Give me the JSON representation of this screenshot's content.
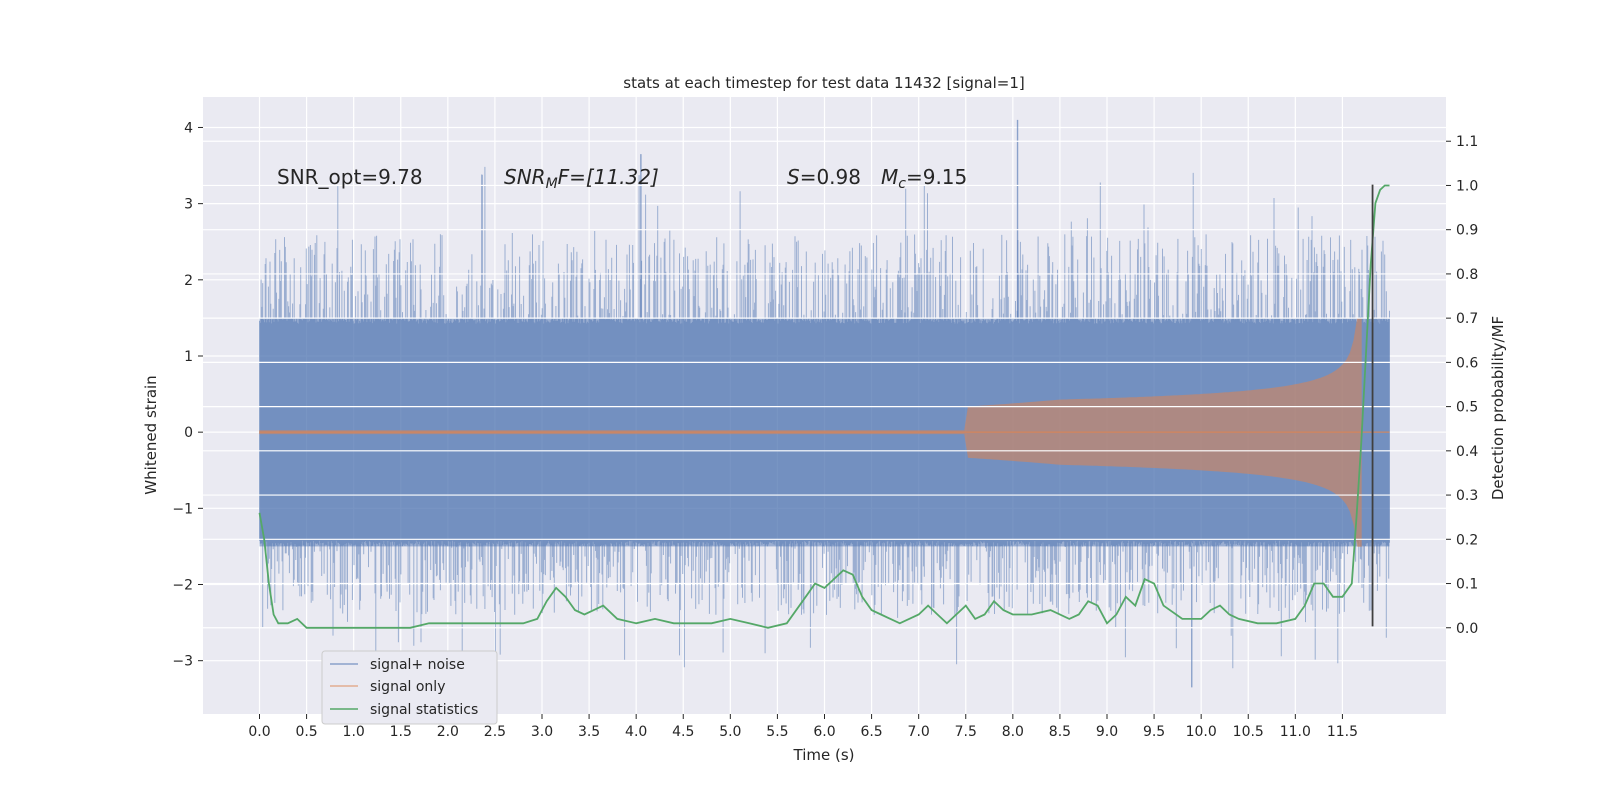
{
  "chart_data": {
    "type": "line",
    "title": "stats at each timestep for test data 11432 [signal=1]",
    "xlabel": "Time (s)",
    "ylabel_left": "Whitened strain",
    "ylabel_right": "Detection probability/MF",
    "xlim": [
      -0.6,
      12.6
    ],
    "ylim_left": [
      -3.7,
      4.4
    ],
    "ylim_right": [
      -0.195,
      1.2
    ],
    "x_ticks": [
      0.0,
      0.5,
      1.0,
      1.5,
      2.0,
      2.5,
      3.0,
      3.5,
      4.0,
      4.5,
      5.0,
      5.5,
      6.0,
      6.5,
      7.0,
      7.5,
      8.0,
      8.5,
      9.0,
      9.5,
      10.0,
      10.5,
      11.0,
      11.5
    ],
    "x_tick_labels": [
      "0.0",
      "0.5",
      "1.0",
      "1.5",
      "2.0",
      "2.5",
      "3.0",
      "3.5",
      "4.0",
      "4.5",
      "5.0",
      "5.5",
      "6.0",
      "6.5",
      "7.0",
      "7.5",
      "8.0",
      "8.5",
      "9.0",
      "9.5",
      "10.0",
      "10.5",
      "11.0",
      "11.5"
    ],
    "y_left_ticks": [
      -3,
      -2,
      -1,
      0,
      1,
      2,
      3,
      4
    ],
    "y_left_tick_labels": [
      "−3",
      "−2",
      "−1",
      "0",
      "1",
      "2",
      "3",
      "4"
    ],
    "y_right_ticks": [
      0.0,
      0.1,
      0.2,
      0.3,
      0.4,
      0.5,
      0.6,
      0.7,
      0.8,
      0.9,
      1.0,
      1.1
    ],
    "y_right_tick_labels": [
      "0.0",
      "0.1",
      "0.2",
      "0.3",
      "0.4",
      "0.5",
      "0.6",
      "0.7",
      "0.8",
      "0.9",
      "1.0",
      "1.1"
    ],
    "grid": true,
    "legend_position": "bottom-left",
    "annotations": {
      "snr_opt": "SNR_opt=9.78",
      "snr_mf_sym": "SNR",
      "snr_mf_sub": "M",
      "snr_mf_rest": "F=[11.32]",
      "s_sym": "S",
      "s_rest": "=0.98",
      "mc_sym": "M",
      "mc_sub": "c",
      "mc_rest": "=9.15"
    },
    "vertical_marker": {
      "x": 11.82,
      "y_range": [
        -2.55,
        3.25
      ],
      "color": "#404040"
    },
    "series": [
      {
        "name": "signal+ noise",
        "axis": "left",
        "color": "#4c72b0",
        "style": "noise",
        "x_range": [
          0.0,
          12.0
        ],
        "envelope": 1.5,
        "peak_max": 4.1,
        "trough_min": -3.35
      },
      {
        "name": "signal only",
        "axis": "left",
        "color": "#dd8452",
        "style": "chirp",
        "x_range": [
          0.0,
          12.0
        ],
        "merger_time": 11.65,
        "peak_amplitude": 1.5
      },
      {
        "name": "signal statistics",
        "axis": "right",
        "color": "#55a868",
        "style": "line",
        "x": [
          0.0,
          0.05,
          0.1,
          0.15,
          0.2,
          0.3,
          0.4,
          0.5,
          0.6,
          0.8,
          1.0,
          1.2,
          1.4,
          1.6,
          1.8,
          2.0,
          2.2,
          2.4,
          2.6,
          2.8,
          2.95,
          3.05,
          3.15,
          3.25,
          3.35,
          3.45,
          3.55,
          3.65,
          3.8,
          4.0,
          4.2,
          4.4,
          4.6,
          4.8,
          5.0,
          5.2,
          5.4,
          5.6,
          5.8,
          5.9,
          6.0,
          6.1,
          6.2,
          6.3,
          6.4,
          6.5,
          6.6,
          6.8,
          7.0,
          7.1,
          7.2,
          7.3,
          7.4,
          7.5,
          7.6,
          7.7,
          7.8,
          7.9,
          8.0,
          8.2,
          8.4,
          8.6,
          8.7,
          8.8,
          8.9,
          9.0,
          9.1,
          9.2,
          9.3,
          9.4,
          9.5,
          9.6,
          9.8,
          10.0,
          10.1,
          10.2,
          10.3,
          10.4,
          10.6,
          10.8,
          11.0,
          11.1,
          11.2,
          11.3,
          11.4,
          11.5,
          11.6,
          11.65,
          11.7,
          11.75,
          11.8,
          11.85,
          11.9,
          11.95,
          12.0
        ],
        "values": [
          0.26,
          0.2,
          0.1,
          0.03,
          0.01,
          0.01,
          0.02,
          0.0,
          0.0,
          0.0,
          0.0,
          0.0,
          0.0,
          0.0,
          0.01,
          0.01,
          0.01,
          0.01,
          0.01,
          0.01,
          0.02,
          0.06,
          0.09,
          0.07,
          0.04,
          0.03,
          0.04,
          0.05,
          0.02,
          0.01,
          0.02,
          0.01,
          0.01,
          0.01,
          0.02,
          0.01,
          0.0,
          0.01,
          0.07,
          0.1,
          0.09,
          0.11,
          0.13,
          0.12,
          0.07,
          0.04,
          0.03,
          0.01,
          0.03,
          0.05,
          0.03,
          0.01,
          0.03,
          0.05,
          0.02,
          0.03,
          0.06,
          0.04,
          0.03,
          0.03,
          0.04,
          0.02,
          0.03,
          0.06,
          0.05,
          0.01,
          0.03,
          0.07,
          0.05,
          0.11,
          0.1,
          0.05,
          0.02,
          0.02,
          0.04,
          0.05,
          0.03,
          0.02,
          0.01,
          0.01,
          0.02,
          0.05,
          0.1,
          0.1,
          0.07,
          0.07,
          0.1,
          0.25,
          0.42,
          0.62,
          0.82,
          0.96,
          0.99,
          1.0,
          1.0
        ]
      }
    ]
  }
}
